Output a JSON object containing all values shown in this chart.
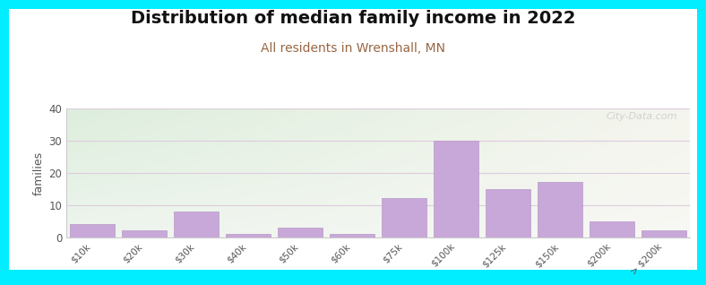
{
  "title": "Distribution of median family income in 2022",
  "subtitle": "All residents in Wrenshall, MN",
  "categories": [
    "$10k",
    "$20k",
    "$30k",
    "$40k",
    "$50k",
    "$60k",
    "$75k",
    "$100k",
    "$125k",
    "$150k",
    "$200k",
    "> $200k"
  ],
  "values": [
    4,
    2,
    8,
    1,
    3,
    1,
    12,
    30,
    15,
    17,
    5,
    2
  ],
  "bar_color": "#c8a8d8",
  "bar_edge_color": "#b898c8",
  "ylabel": "families",
  "ylim": [
    0,
    40
  ],
  "yticks": [
    0,
    10,
    20,
    30,
    40
  ],
  "bg_topleft": "#ddeedd",
  "bg_topright": "#f5f5ee",
  "bg_bottomleft": "#eef5ee",
  "bg_bottomright": "#f8f8f4",
  "outer_background": "#00eeff",
  "title_fontsize": 14,
  "subtitle_fontsize": 10,
  "subtitle_color": "#996644",
  "watermark": "City-Data.com",
  "grid_color": "#ddccdd",
  "tick_color": "#555555",
  "spine_color": "#cccccc"
}
